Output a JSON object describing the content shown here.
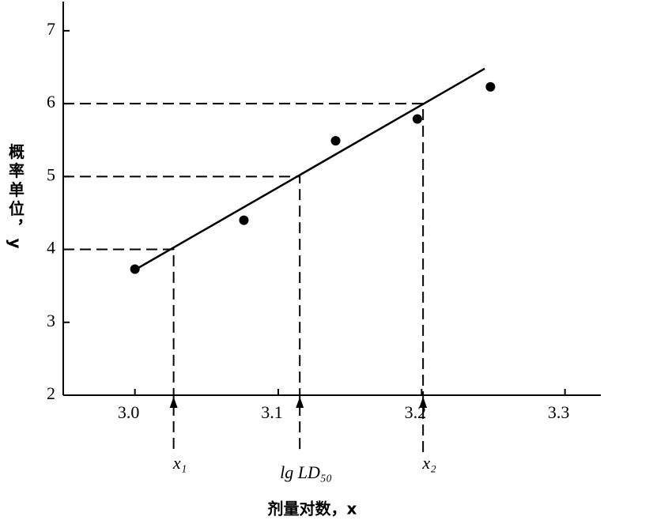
{
  "chart_data": {
    "type": "scatter",
    "xlabel": "剂量对数，x",
    "ylabel": "概率单位，y",
    "x": [
      3.0,
      3.076,
      3.14,
      3.197,
      3.248
    ],
    "values": [
      3.73,
      4.4,
      5.49,
      5.79,
      6.23
    ],
    "color": "#000000",
    "fit_line": {
      "x": [
        3.0,
        3.244
      ],
      "values": [
        3.72,
        6.48
      ]
    },
    "reference_lines": [
      {
        "label": "x₁",
        "x": 3.027,
        "y": 4
      },
      {
        "label": "lg LD₅₀",
        "x": 3.115,
        "y": 5
      },
      {
        "label": "x₂",
        "x": 3.201,
        "y": 6
      }
    ],
    "xlim": [
      2.95,
      3.325
    ],
    "xticks": [
      {
        "value": 3,
        "label": "3.0"
      },
      3.1,
      3.2,
      3.3
    ],
    "ylim": [
      2,
      7.4
    ],
    "yticks": [
      2,
      3,
      4,
      5,
      6,
      7
    ]
  }
}
